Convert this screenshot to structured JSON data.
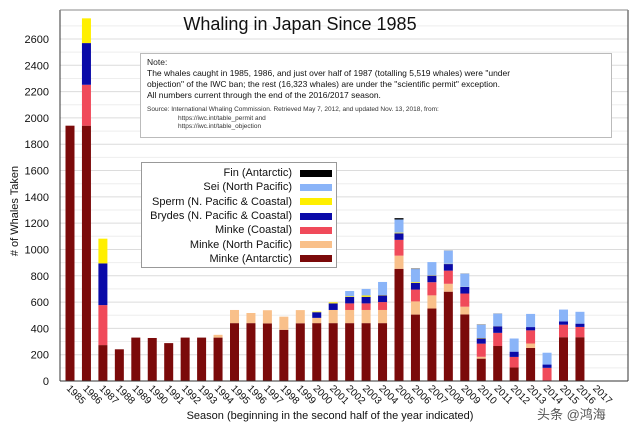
{
  "chart_data": {
    "type": "bar",
    "stacked": true,
    "title": "Whaling in Japan Since 1985",
    "xlabel": "Season (beginning in the second half of the year indicated)",
    "ylabel": "# of Whales Taken",
    "ylim": [
      0,
      2750
    ],
    "yticks": [
      0,
      200,
      400,
      600,
      800,
      1000,
      1200,
      1400,
      1600,
      1800,
      2000,
      2200,
      2400,
      2600
    ],
    "grid": true,
    "legend_position": "upper-left inset",
    "categories": [
      "1985",
      "1986",
      "1987",
      "1988",
      "1989",
      "1990",
      "1991",
      "1992",
      "1993",
      "1994",
      "1995",
      "1996",
      "1997",
      "1998",
      "1999",
      "2000",
      "2001",
      "2002",
      "2003",
      "2004",
      "2005",
      "2006",
      "2007",
      "2008",
      "2009",
      "2010",
      "2011",
      "2012",
      "2013",
      "2014",
      "2015",
      "2016",
      "2017"
    ],
    "series": [
      {
        "name": "Minke (Antarctic)",
        "color": "#7b0a0a",
        "values": [
          1941,
          1941,
          273,
          241,
          330,
          327,
          288,
          330,
          330,
          330,
          440,
          440,
          438,
          389,
          439,
          440,
          440,
          440,
          440,
          440,
          853,
          505,
          551,
          679,
          506,
          170,
          266,
          103,
          251,
          0,
          333,
          333,
          0
        ]
      },
      {
        "name": "Minke (North Pacific)",
        "color": "#f9c08a",
        "values": [
          0,
          0,
          0,
          0,
          0,
          0,
          0,
          0,
          0,
          21,
          100,
          77,
          100,
          100,
          100,
          40,
          100,
          100,
          100,
          100,
          100,
          100,
          100,
          60,
          59,
          14,
          0,
          0,
          34,
          0,
          0,
          0,
          0
        ]
      },
      {
        "name": "Minke (Coastal)",
        "color": "#f04a5a",
        "values": [
          0,
          311,
          304,
          0,
          0,
          0,
          0,
          0,
          0,
          0,
          0,
          0,
          0,
          0,
          0,
          0,
          0,
          50,
          50,
          60,
          120,
          90,
          100,
          100,
          100,
          100,
          100,
          80,
          100,
          100,
          95,
          78,
          0
        ]
      },
      {
        "name": "Brydes (N. Pacific & Coastal)",
        "color": "#0a0aa8",
        "values": [
          0,
          317,
          317,
          0,
          0,
          0,
          0,
          0,
          0,
          0,
          0,
          0,
          0,
          0,
          0,
          43,
          50,
          50,
          50,
          50,
          50,
          50,
          50,
          50,
          50,
          40,
          50,
          40,
          25,
          25,
          25,
          25,
          0
        ]
      },
      {
        "name": "Sperm (N. Pacific & Coastal)",
        "color": "#ffef00",
        "values": [
          0,
          188,
          188,
          0,
          0,
          0,
          0,
          0,
          0,
          0,
          0,
          0,
          0,
          0,
          0,
          5,
          8,
          5,
          10,
          3,
          5,
          6,
          3,
          2,
          1,
          3,
          1,
          0,
          0,
          0,
          0,
          0,
          0
        ]
      },
      {
        "name": "Sei (North Pacific)",
        "color": "#8ab4f8",
        "values": [
          0,
          0,
          0,
          0,
          0,
          0,
          0,
          0,
          0,
          0,
          0,
          0,
          0,
          0,
          0,
          0,
          0,
          39,
          50,
          100,
          100,
          100,
          100,
          100,
          100,
          100,
          95,
          100,
          100,
          90,
          90,
          90,
          0
        ]
      },
      {
        "name": "Fin (Antarctic)",
        "color": "#000000",
        "values": [
          0,
          0,
          0,
          0,
          0,
          0,
          0,
          0,
          0,
          0,
          0,
          0,
          0,
          0,
          0,
          0,
          0,
          0,
          0,
          0,
          10,
          3,
          0,
          1,
          1,
          2,
          1,
          0,
          0,
          0,
          0,
          0,
          0
        ]
      }
    ],
    "legend_order": [
      "Fin (Antarctic)",
      "Sei (North Pacific)",
      "Sperm (N. Pacific & Coastal)",
      "Brydes (N. Pacific & Coastal)",
      "Minke (Coastal)",
      "Minke (North Pacific)",
      "Minke (Antarctic)"
    ],
    "annotations": {
      "note_heading": "Note:",
      "note_lines": [
        "The whales caught in 1985, 1986, and just over half of 1987 (totalling 5,519 whales) were \"under",
        "objection\" of the IWC ban; the rest (16,323 whales) are under the \"scientific permit\" exception.",
        "All numbers current through the end of the 2016/2017 season."
      ],
      "source_lines": [
        "Source:  International Whaling Commission. Retrieved May 7, 2012, and updated Nov. 13, 2018, from:",
        "https://iwc.int/table_permit  and",
        "https://iwc.int/table_objection"
      ]
    }
  },
  "watermark": "头条 @鸿海"
}
